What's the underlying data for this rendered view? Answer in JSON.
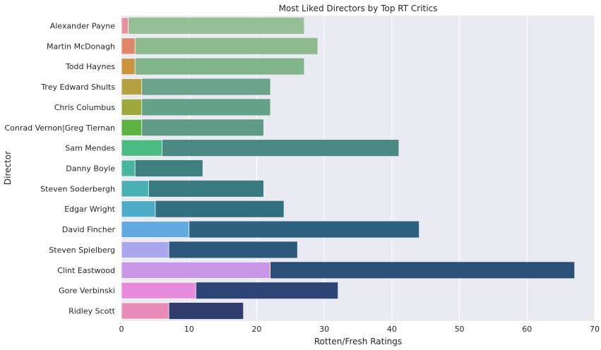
{
  "chart_data": {
    "type": "bar",
    "orientation": "horizontal",
    "stacked_overlay": true,
    "title": "Most Liked Directors by Top RT Critics",
    "xlabel": "Rotten/Fresh Ratings",
    "ylabel": "Director",
    "xlim": [
      0,
      70
    ],
    "xticks": [
      0,
      10,
      20,
      30,
      40,
      50,
      60,
      70
    ],
    "grid": true,
    "categories": [
      "Alexander Payne",
      "Martin McDonagh",
      "Todd Haynes",
      "Trey Edward Shults",
      "Chris Columbus",
      "Conrad Vernon|Greg Tiernan",
      "Sam Mendes",
      "Danny Boyle",
      "Steven Soderbergh",
      "Edgar Wright",
      "David Fincher",
      "Steven Spielberg",
      "Clint Eastwood",
      "Gore Verbinski",
      "Ridley Scott"
    ],
    "series": [
      {
        "values": [
          27,
          29,
          27,
          22,
          22,
          21,
          41,
          12,
          21,
          24,
          44,
          26,
          67,
          32,
          18
        ],
        "colors": [
          "#97bf95",
          "#8dbb8f",
          "#82b48c",
          "#6aa38a",
          "#66a189",
          "#5f9b87",
          "#4a8882",
          "#3e7f80",
          "#387a80",
          "#336f7e",
          "#2c6180",
          "#2c597b",
          "#2b4f77",
          "#2d4574",
          "#2f3d6c"
        ]
      },
      {
        "values": [
          1,
          2,
          2,
          3,
          3,
          3,
          6,
          2,
          4,
          5,
          10,
          7,
          22,
          11,
          7
        ],
        "colors": [
          "#e8909e",
          "#e0876a",
          "#cd9440",
          "#b5a042",
          "#9ea83d",
          "#5db341",
          "#4cba83",
          "#47b6a0",
          "#4ab0b4",
          "#4eacc8",
          "#64a9e0",
          "#a9a8ef",
          "#c996e8",
          "#e68adc",
          "#e98ab8"
        ]
      }
    ],
    "colors": {
      "background": "#eaeaf2",
      "grid": "#ffffff",
      "text": "#262626"
    }
  }
}
